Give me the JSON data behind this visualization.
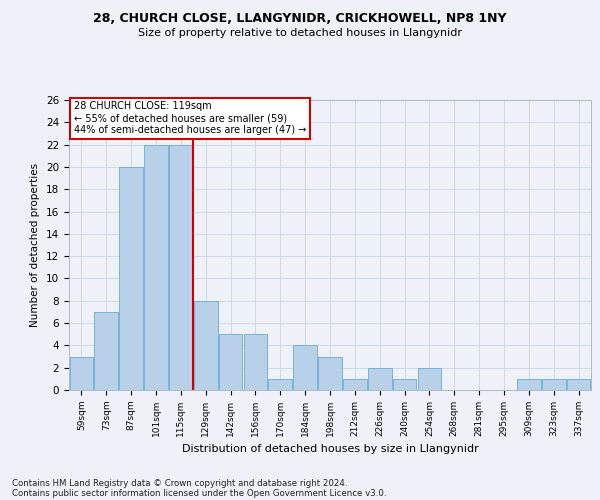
{
  "title1": "28, CHURCH CLOSE, LLANGYNIDR, CRICKHOWELL, NP8 1NY",
  "title2": "Size of property relative to detached houses in Llangynidr",
  "xlabel": "Distribution of detached houses by size in Llangynidr",
  "ylabel": "Number of detached properties",
  "categories": [
    "59sqm",
    "73sqm",
    "87sqm",
    "101sqm",
    "115sqm",
    "129sqm",
    "142sqm",
    "156sqm",
    "170sqm",
    "184sqm",
    "198sqm",
    "212sqm",
    "226sqm",
    "240sqm",
    "254sqm",
    "268sqm",
    "281sqm",
    "295sqm",
    "309sqm",
    "323sqm",
    "337sqm"
  ],
  "values": [
    3,
    7,
    20,
    22,
    22,
    8,
    5,
    5,
    1,
    4,
    3,
    1,
    2,
    1,
    2,
    0,
    0,
    0,
    1,
    1,
    1
  ],
  "bar_color": "#b8d0e8",
  "bar_edge_color": "#6aaad4",
  "grid_color": "#d0d8e8",
  "vline_x": 4.5,
  "vline_color": "#cc0000",
  "annotation_text": "28 CHURCH CLOSE: 119sqm\n← 55% of detached houses are smaller (59)\n44% of semi-detached houses are larger (47) →",
  "annotation_box_color": "#ffffff",
  "annotation_box_edge": "#cc0000",
  "ylim": [
    0,
    26
  ],
  "yticks": [
    0,
    2,
    4,
    6,
    8,
    10,
    12,
    14,
    16,
    18,
    20,
    22,
    24,
    26
  ],
  "footnote1": "Contains HM Land Registry data © Crown copyright and database right 2024.",
  "footnote2": "Contains public sector information licensed under the Open Government Licence v3.0.",
  "bg_color": "#eef2f8"
}
